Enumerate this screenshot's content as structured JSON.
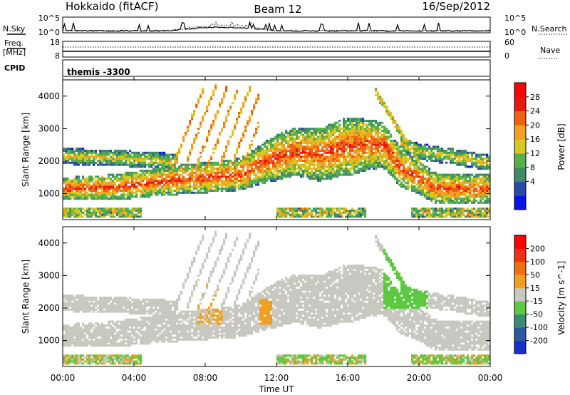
{
  "header": {
    "station": "Hokkaido (fitACF)",
    "beam": "Beam 12",
    "date": "16/Sep/2012"
  },
  "top_panels": {
    "nsky_label": "N.Sky",
    "nsky_ticks": [
      "10^5",
      "10^0"
    ],
    "nsearch_label": "N.Search",
    "nsearch_ticks": [
      "10^5",
      "10^0"
    ],
    "freq_label_1": "Freq.",
    "freq_label_2": "[MHz]",
    "freq_ticks": [
      "18",
      "8"
    ],
    "nave_label": "Nave",
    "nave_ticks": [
      "60",
      "0"
    ],
    "cpid_label": "CPID",
    "cpid_value": "themis -3300"
  },
  "chart_data": [
    {
      "type": "heatmap",
      "name": "power",
      "ylabel": "Slant Range [km]",
      "yticks": [
        "4000",
        "3000",
        "2000",
        "1000"
      ],
      "ylim": [
        200,
        4500
      ],
      "colorbar_label": "Power [dB]",
      "colorbar_ticks": [
        "28",
        "24",
        "20",
        "16",
        "12",
        "8",
        "4"
      ],
      "colors": [
        "#0a14e6",
        "#2a4aa8",
        "#3f8a6a",
        "#55b04a",
        "#d8c820",
        "#f0a020",
        "#f06010",
        "#e81810",
        "#ff0000"
      ]
    },
    {
      "type": "heatmap",
      "name": "velocity",
      "ylabel": "Slant Range [km]",
      "yticks": [
        "4000",
        "3000",
        "2000",
        "1000"
      ],
      "ylim": [
        200,
        4500
      ],
      "colorbar_label": "Velocity [m s^-1]",
      "colorbar_ticks": [
        "200",
        "100",
        "50",
        "15",
        "-15",
        "-50",
        "-100",
        "-200"
      ],
      "colors": [
        "#1830c8",
        "#2c58a0",
        "#3a8a78",
        "#5cc840",
        "#c8c8c0",
        "#f0a020",
        "#f07010",
        "#f03010",
        "#ff0000"
      ]
    }
  ],
  "x_axis": {
    "ticks": [
      "00:00",
      "04:00",
      "08:00",
      "12:00",
      "16:00",
      "20:00",
      "00:00"
    ],
    "label": "Time UT"
  }
}
